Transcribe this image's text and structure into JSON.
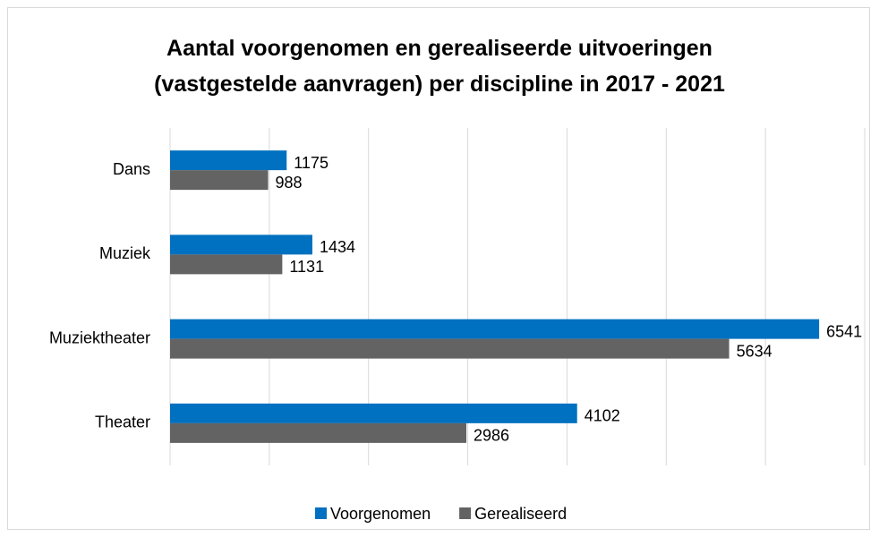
{
  "chart_data": {
    "type": "barh",
    "title": "Aantal voorgenomen en gerealiseerde uitvoeringen (vastgestelde aanvragen) per discipline in 2017 - 2021",
    "categories": [
      "Dans",
      "Muziek",
      "Muziektheater",
      "Theater"
    ],
    "series": [
      {
        "name": "Voorgenomen",
        "color": "#0070c0",
        "values": [
          1175,
          1434,
          6541,
          4102
        ]
      },
      {
        "name": "Gerealiseerd",
        "color": "#636363",
        "values": [
          988,
          1131,
          5634,
          2986
        ]
      }
    ],
    "xlim": [
      0,
      7000
    ],
    "xticks": [
      0,
      1000,
      2000,
      3000,
      4000,
      5000,
      6000,
      7000
    ],
    "grid": true,
    "legend": "bottom"
  }
}
